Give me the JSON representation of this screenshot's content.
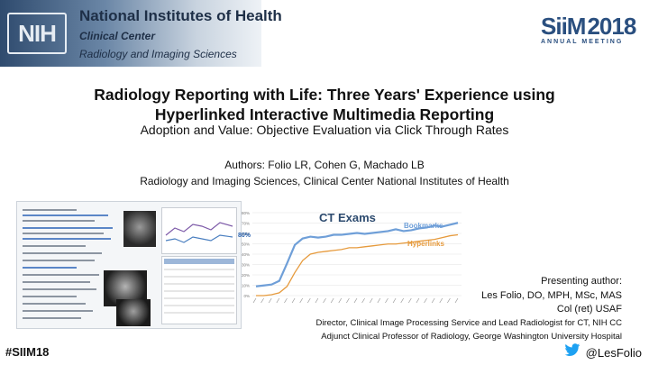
{
  "header": {
    "nih_logo_text": "NIH",
    "nih_title": "National Institutes of Health",
    "nih_subtitle1": "Clinical Center",
    "nih_subtitle2": "Radiology and Imaging Sciences",
    "siim_mark": "SiiM",
    "siim_year": "2018",
    "siim_tagline": "ANNUAL MEETING"
  },
  "title": {
    "line1": "Radiology Reporting with Life: Three Years' Experience using",
    "line2": "Hyperlinked Interactive Multimedia Reporting",
    "subtitle": "Adoption and Value: Objective Evaluation via Click Through Rates"
  },
  "authors": "Authors: Folio LR, Cohen G, Machado LB",
  "affiliation": "Radiology and Imaging Sciences, Clinical Center National Institutes of Health",
  "chart_data": {
    "type": "line",
    "title": "CT Exams",
    "series": [
      {
        "name": "Bookmarks",
        "color": "#6f9fd8",
        "values": [
          10,
          11,
          12,
          16,
          35,
          55,
          62,
          64,
          63,
          64,
          66,
          66,
          67,
          68,
          67,
          68,
          69,
          70,
          72,
          70,
          71,
          73,
          74,
          76,
          75,
          77,
          79
        ]
      },
      {
        "name": "Hyperlinks",
        "color": "#e69a3c",
        "values": [
          0,
          0,
          1,
          3,
          10,
          25,
          38,
          45,
          47,
          48,
          49,
          50,
          52,
          52,
          53,
          54,
          55,
          56,
          56,
          57,
          58,
          59,
          60,
          61,
          63,
          65,
          66
        ]
      }
    ],
    "callout": "80%",
    "ylim": [
      0,
      90
    ],
    "yticks": [
      "80%",
      "70%",
      "60%",
      "50%",
      "40%",
      "30%",
      "20%",
      "10%",
      "0%"
    ]
  },
  "presenter": {
    "label": "Presenting author:",
    "name": "Les Folio, DO, MPH, MSc, MAS",
    "rank": "Col (ret) USAF",
    "role1": "Director, Clinical Image Processing Service and Lead Radiologist for CT, NIH CC",
    "role2": "Adjunct Clinical Professor of Radiology, George Washington University Hospital"
  },
  "footer": {
    "hashtag": "#SIIM18",
    "twitter_handle": "@LesFolio",
    "twitter_color": "#1da1f2"
  }
}
